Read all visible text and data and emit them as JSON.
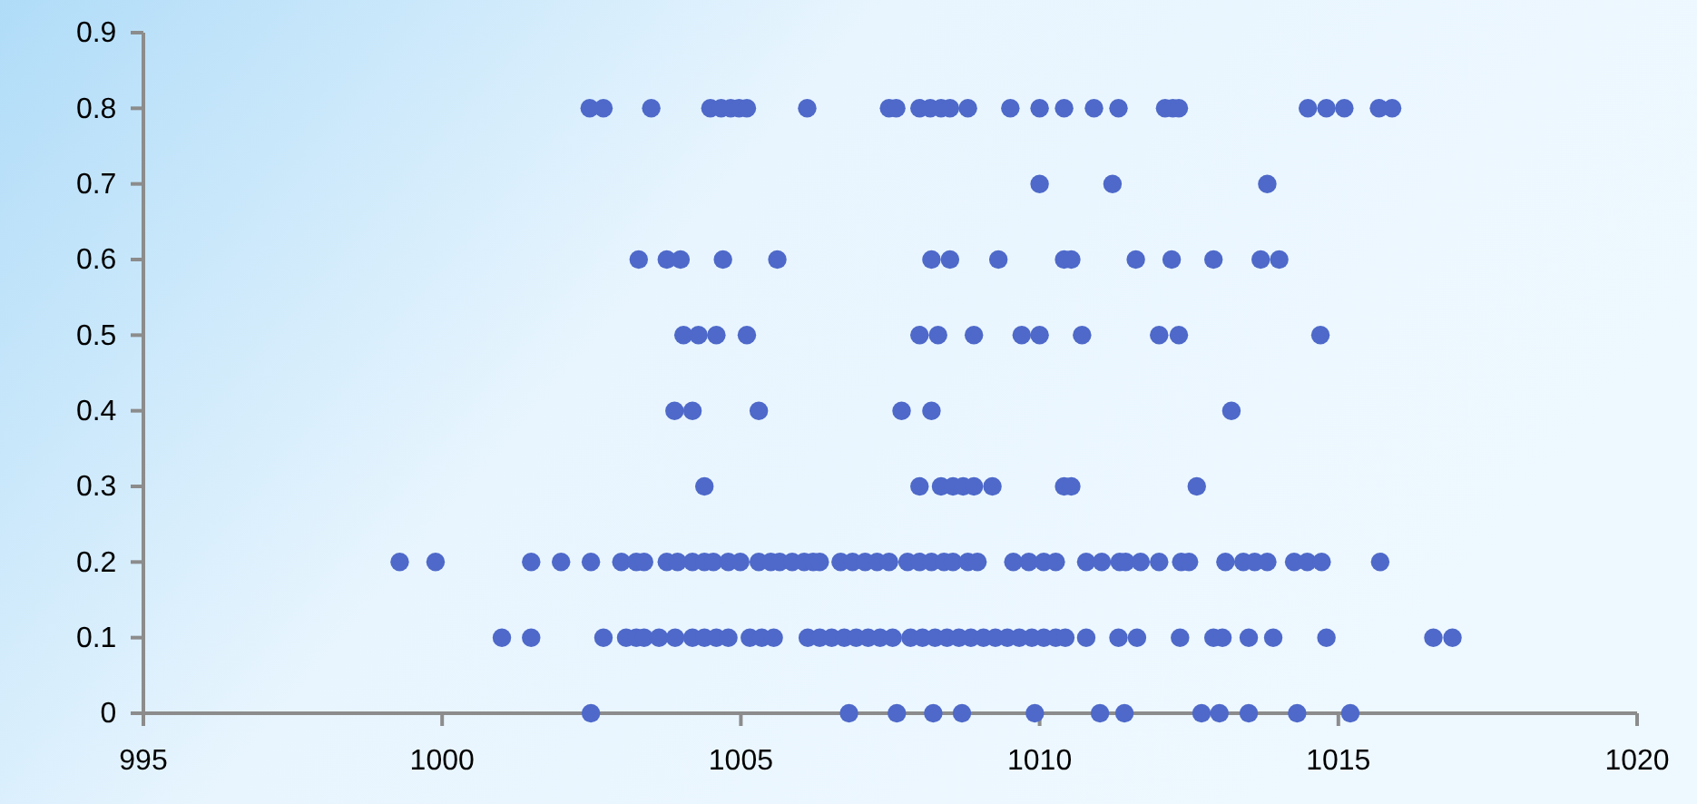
{
  "chart_data": {
    "type": "scatter",
    "xlim": [
      995,
      1020
    ],
    "ylim": [
      0,
      0.9
    ],
    "xticks": [
      995,
      1000,
      1005,
      1010,
      1015,
      1020
    ],
    "yticks": [
      0,
      0.1,
      0.2,
      0.3,
      0.4,
      0.5,
      0.6,
      0.7,
      0.8,
      0.9
    ],
    "grid": false,
    "marker": "circle",
    "series": [
      {
        "color": "#4e69c9",
        "x": [
          1002.47,
          1002.7,
          1003.5,
          1004.49,
          1004.67,
          1004.83,
          1004.97,
          1005.1,
          1006.11,
          1007.48,
          1007.6,
          1007.99,
          1008.17,
          1008.35,
          1008.5,
          1008.8,
          1009.51,
          1010.0,
          1010.41,
          1010.91,
          1011.32,
          1012.1,
          1012.23,
          1012.33,
          1014.49,
          1014.8,
          1015.1,
          1015.68,
          1015.9,
          1010.0,
          1011.22,
          1013.81,
          1003.29,
          1003.76,
          1003.99,
          1004.7,
          1005.61,
          1008.19,
          1008.5,
          1009.31,
          1010.41,
          1010.53,
          1011.61,
          1012.21,
          1012.91,
          1013.7,
          1014.01,
          1004.04,
          1004.29,
          1004.59,
          1005.1,
          1007.99,
          1008.3,
          1008.9,
          1009.7,
          1010.0,
          1010.71,
          1012.0,
          1012.33,
          1014.7,
          1003.89,
          1004.19,
          1005.3,
          1007.69,
          1008.19,
          1013.21,
          1004.39,
          1007.99,
          1008.35,
          1008.55,
          1008.72,
          1008.9,
          1009.21,
          1010.41,
          1010.53,
          1012.63,
          999.29,
          999.89,
          1001.49,
          1001.99,
          1002.49,
          1003.0,
          1003.25,
          1003.38,
          1003.76,
          1003.94,
          1004.19,
          1004.39,
          1004.54,
          1004.79,
          1004.99,
          1005.3,
          1005.5,
          1005.65,
          1005.86,
          1006.06,
          1006.21,
          1006.32,
          1006.67,
          1006.87,
          1007.08,
          1007.28,
          1007.48,
          1007.79,
          1007.99,
          1008.19,
          1008.4,
          1008.55,
          1008.8,
          1008.96,
          1009.56,
          1009.82,
          1010.07,
          1010.27,
          1010.78,
          1011.04,
          1011.34,
          1011.44,
          1011.69,
          1012.0,
          1012.37,
          1012.5,
          1013.11,
          1013.41,
          1013.6,
          1013.81,
          1014.26,
          1014.48,
          1014.72,
          1015.7,
          1001.0,
          1001.49,
          1002.7,
          1003.08,
          1003.25,
          1003.38,
          1003.63,
          1003.9,
          1004.19,
          1004.39,
          1004.59,
          1004.79,
          1005.15,
          1005.35,
          1005.55,
          1006.12,
          1006.32,
          1006.52,
          1006.73,
          1006.93,
          1007.13,
          1007.33,
          1007.54,
          1007.84,
          1008.04,
          1008.25,
          1008.45,
          1008.65,
          1008.85,
          1009.06,
          1009.26,
          1009.46,
          1009.66,
          1009.87,
          1010.07,
          1010.27,
          1010.43,
          1010.78,
          1011.32,
          1011.63,
          1012.35,
          1012.91,
          1013.06,
          1013.5,
          1013.91,
          1014.8,
          1016.59,
          1016.91,
          1002.49,
          1006.81,
          1007.61,
          1008.22,
          1008.7,
          1009.92,
          1011.01,
          1011.42,
          1012.71,
          1013.01,
          1013.5,
          1014.31,
          1015.2
        ],
        "values": [
          0.8,
          0.8,
          0.8,
          0.8,
          0.8,
          0.8,
          0.8,
          0.8,
          0.8,
          0.8,
          0.8,
          0.8,
          0.8,
          0.8,
          0.8,
          0.8,
          0.8,
          0.8,
          0.8,
          0.8,
          0.8,
          0.8,
          0.8,
          0.8,
          0.8,
          0.8,
          0.8,
          0.8,
          0.8,
          0.7,
          0.7,
          0.7,
          0.6,
          0.6,
          0.6,
          0.6,
          0.6,
          0.6,
          0.6,
          0.6,
          0.6,
          0.6,
          0.6,
          0.6,
          0.6,
          0.6,
          0.6,
          0.5,
          0.5,
          0.5,
          0.5,
          0.5,
          0.5,
          0.5,
          0.5,
          0.5,
          0.5,
          0.5,
          0.5,
          0.5,
          0.4,
          0.4,
          0.4,
          0.4,
          0.4,
          0.4,
          0.3,
          0.3,
          0.3,
          0.3,
          0.3,
          0.3,
          0.3,
          0.3,
          0.3,
          0.3,
          0.2,
          0.2,
          0.2,
          0.2,
          0.2,
          0.2,
          0.2,
          0.2,
          0.2,
          0.2,
          0.2,
          0.2,
          0.2,
          0.2,
          0.2,
          0.2,
          0.2,
          0.2,
          0.2,
          0.2,
          0.2,
          0.2,
          0.2,
          0.2,
          0.2,
          0.2,
          0.2,
          0.2,
          0.2,
          0.2,
          0.2,
          0.2,
          0.2,
          0.2,
          0.2,
          0.2,
          0.2,
          0.2,
          0.2,
          0.2,
          0.2,
          0.2,
          0.2,
          0.2,
          0.2,
          0.2,
          0.2,
          0.2,
          0.2,
          0.2,
          0.2,
          0.2,
          0.2,
          0.2,
          0.1,
          0.1,
          0.1,
          0.1,
          0.1,
          0.1,
          0.1,
          0.1,
          0.1,
          0.1,
          0.1,
          0.1,
          0.1,
          0.1,
          0.1,
          0.1,
          0.1,
          0.1,
          0.1,
          0.1,
          0.1,
          0.1,
          0.1,
          0.1,
          0.1,
          0.1,
          0.1,
          0.1,
          0.1,
          0.1,
          0.1,
          0.1,
          0.1,
          0.1,
          0.1,
          0.1,
          0.1,
          0.1,
          0.1,
          0.1,
          0.1,
          0.1,
          0.1,
          0.1,
          0.1,
          0.1,
          0.1,
          0.1,
          0,
          0,
          0,
          0,
          0,
          0,
          0,
          0,
          0,
          0,
          0,
          0,
          0
        ]
      }
    ]
  }
}
